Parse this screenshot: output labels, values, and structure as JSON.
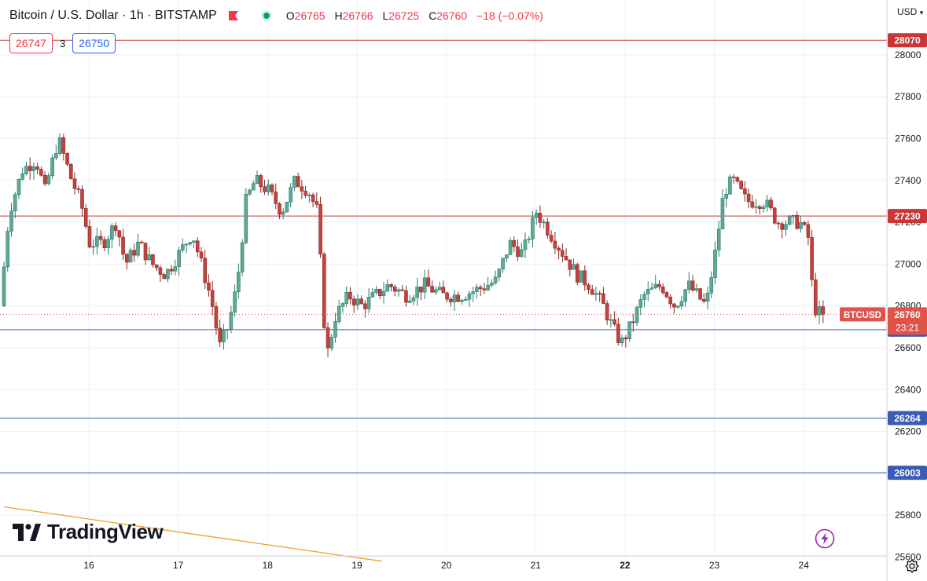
{
  "header": {
    "title": "Bitcoin / U.S. Dollar · 1h · BITSTAMP",
    "ohlc": [
      {
        "key": "O",
        "value": "26765"
      },
      {
        "key": "H",
        "value": "26766"
      },
      {
        "key": "L",
        "value": "26725"
      },
      {
        "key": "C",
        "value": "26760"
      }
    ],
    "change": "−18 (−0.07%)"
  },
  "spread": {
    "sell": "26747",
    "spread": "3",
    "buy": "26750"
  },
  "currency_label": "USD",
  "branding": "TradingView",
  "icons": {
    "flag": "flag-icon",
    "live": "live-dot-icon",
    "logo": "tradingview-logo-icon",
    "bolt": "bolt-icon",
    "settings": "settings-icon"
  },
  "colors": {
    "up": "#089981",
    "down": "#f23645",
    "candle_body_up": "#5fa898",
    "candle_body_down": "#c5413c",
    "resistance": "#cc3535",
    "support": "#3b5bb5",
    "trendline": "#f0a030",
    "grid": "#eef0f3",
    "text": "#131722",
    "price_tag": "#e0534a"
  },
  "chart_data": {
    "type": "candlestick",
    "symbol": "BTCUSD",
    "x_tick_labels": [
      "16",
      "17",
      "18",
      "19",
      "20",
      "21",
      "22",
      "23",
      "24"
    ],
    "y_tick_labels": [
      25600,
      25800,
      26000,
      26200,
      26400,
      26600,
      26800,
      27000,
      27200,
      27400,
      27600,
      27800,
      28000
    ],
    "ylim": [
      25580,
      28170
    ],
    "grid": true,
    "horizontal_levels": [
      {
        "value": 28070,
        "label": "28070",
        "kind": "resistance"
      },
      {
        "value": 27230,
        "label": "27230",
        "kind": "resistance"
      },
      {
        "value": 26687,
        "label": "26687",
        "kind": "support"
      },
      {
        "value": 26264,
        "label": "26264",
        "kind": "support"
      },
      {
        "value": 26003,
        "label": "26003",
        "kind": "support"
      }
    ],
    "current_price": {
      "value": 26760,
      "label": "26760",
      "symbol_tag": "BTCUSD",
      "countdown": "23:21"
    },
    "trendline": {
      "from_day": 15.05,
      "from_value": 25840,
      "to_day": 19.28,
      "to_value": 25580
    },
    "price_path": [
      [
        15.05,
        26800
      ],
      [
        15.15,
        27250
      ],
      [
        15.3,
        27450
      ],
      [
        15.45,
        27500
      ],
      [
        15.55,
        27350
      ],
      [
        15.7,
        27600
      ],
      [
        15.85,
        27400
      ],
      [
        15.95,
        27300
      ],
      [
        16.05,
        27100
      ],
      [
        16.2,
        27100
      ],
      [
        16.35,
        27200
      ],
      [
        16.45,
        27000
      ],
      [
        16.6,
        27100
      ],
      [
        16.75,
        27000
      ],
      [
        16.9,
        26950
      ],
      [
        17.05,
        27050
      ],
      [
        17.2,
        27150
      ],
      [
        17.3,
        27000
      ],
      [
        17.4,
        26850
      ],
      [
        17.45,
        26750
      ],
      [
        17.5,
        26600
      ],
      [
        17.6,
        26700
      ],
      [
        17.7,
        26900
      ],
      [
        17.8,
        27300
      ],
      [
        17.9,
        27400
      ],
      [
        18.05,
        27350
      ],
      [
        18.2,
        27250
      ],
      [
        18.35,
        27400
      ],
      [
        18.5,
        27350
      ],
      [
        18.6,
        27250
      ],
      [
        18.65,
        26900
      ],
      [
        18.7,
        26550
      ],
      [
        18.8,
        26750
      ],
      [
        18.95,
        26850
      ],
      [
        19.1,
        26800
      ],
      [
        19.25,
        26850
      ],
      [
        19.4,
        26900
      ],
      [
        19.6,
        26850
      ],
      [
        19.8,
        26900
      ],
      [
        20.0,
        26850
      ],
      [
        20.2,
        26850
      ],
      [
        20.4,
        26880
      ],
      [
        20.6,
        26920
      ],
      [
        20.75,
        27100
      ],
      [
        20.9,
        27050
      ],
      [
        21.05,
        27250
      ],
      [
        21.2,
        27150
      ],
      [
        21.35,
        27050
      ],
      [
        21.5,
        26950
      ],
      [
        21.65,
        26900
      ],
      [
        21.8,
        26800
      ],
      [
        21.9,
        26700
      ],
      [
        22.0,
        26620
      ],
      [
        22.1,
        26700
      ],
      [
        22.25,
        26850
      ],
      [
        22.45,
        26900
      ],
      [
        22.6,
        26800
      ],
      [
        22.75,
        26900
      ],
      [
        22.95,
        26800
      ],
      [
        23.05,
        27050
      ],
      [
        23.15,
        27350
      ],
      [
        23.25,
        27400
      ],
      [
        23.4,
        27300
      ],
      [
        23.6,
        27300
      ],
      [
        23.75,
        27200
      ],
      [
        23.9,
        27200
      ],
      [
        24.0,
        27200
      ],
      [
        24.1,
        27120
      ],
      [
        24.15,
        26800
      ],
      [
        24.2,
        26770
      ],
      [
        24.25,
        26760
      ]
    ]
  }
}
